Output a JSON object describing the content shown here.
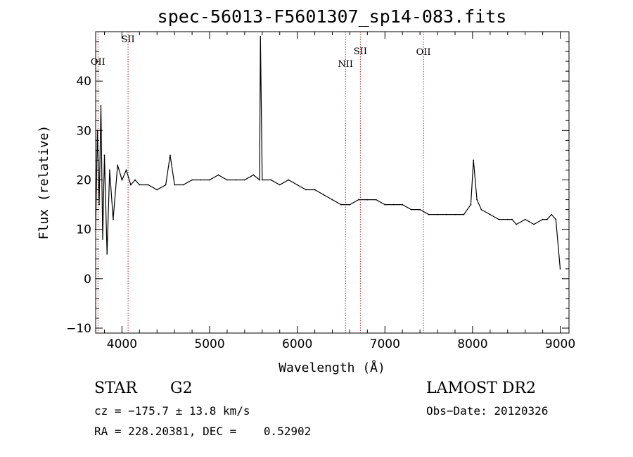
{
  "chart_data": {
    "type": "line",
    "title": "spec-56013-F5601307_sp14-083.fits",
    "xlabel": "Wavelength (Å)",
    "ylabel": "Flux (relative)",
    "xlim": [
      3700,
      9100
    ],
    "ylim": [
      -11,
      50
    ],
    "xticks": [
      4000,
      5000,
      6000,
      7000,
      8000,
      9000
    ],
    "yticks": [
      -10,
      0,
      10,
      20,
      30,
      40
    ],
    "grid": false,
    "series": [
      {
        "x": [
          3700,
          3720,
          3740,
          3760,
          3780,
          3800,
          3830,
          3860,
          3900,
          3950,
          4000,
          4050,
          4100,
          4150,
          4200,
          4300,
          4400,
          4500,
          4550,
          4600,
          4700,
          4800,
          4900,
          5000,
          5100,
          5200,
          5300,
          5400,
          5500,
          5570,
          5580,
          5600,
          5700,
          5800,
          5900,
          6000,
          6100,
          6200,
          6300,
          6400,
          6500,
          6600,
          6700,
          6800,
          6900,
          7000,
          7100,
          7200,
          7300,
          7400,
          7500,
          7600,
          7700,
          7800,
          7900,
          7980,
          8010,
          8050,
          8100,
          8200,
          8300,
          8400,
          8450,
          8500,
          8600,
          8700,
          8800,
          8850,
          8900,
          8950,
          9000
        ],
        "values": [
          10,
          30,
          15,
          35,
          8,
          25,
          5,
          22,
          12,
          23,
          20,
          22,
          19,
          20,
          19,
          19,
          18,
          19,
          25,
          19,
          19,
          20,
          20,
          20,
          21,
          20,
          20,
          20,
          21,
          20,
          49,
          20,
          20,
          19,
          20,
          19,
          18,
          18,
          17,
          16,
          15,
          15,
          16,
          16,
          16,
          15,
          15,
          15,
          14,
          14,
          13,
          13,
          13,
          13,
          13,
          15,
          24,
          16,
          14,
          13,
          12,
          12,
          12,
          11,
          12,
          11,
          12,
          12,
          13,
          12,
          2
        ]
      }
    ],
    "line_markers": [
      {
        "label": "OII",
        "x": 3727
      },
      {
        "label": "SII",
        "x": 4070
      },
      {
        "label": "NII",
        "x": 6550
      },
      {
        "label": "SII",
        "x": 6720
      },
      {
        "label": "OII",
        "x": 7440
      }
    ]
  },
  "info": {
    "class_label": "STAR",
    "subclass_label": "G2",
    "survey": "LAMOST DR2",
    "cz_text": "cz = −175.7 ± 13.8 km/s",
    "obs_date_text": "Obs−Date: 20120326",
    "radec_text": "RA = 228.20381, DEC =    0.52902"
  }
}
